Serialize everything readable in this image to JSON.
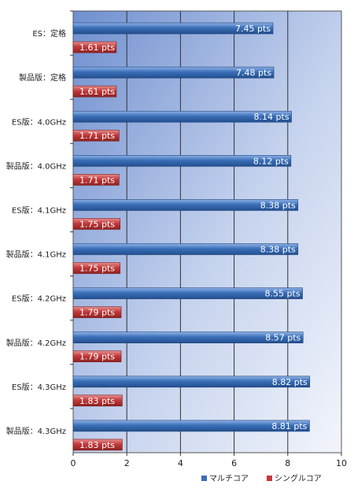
{
  "chart_data": {
    "type": "bar",
    "orientation": "horizontal",
    "categories": [
      "ES：定格",
      "製品版：定格",
      "ES版：4.0GHz",
      "製品版：4.0GHz",
      "ES版：4.1GHz",
      "製品版：4.1GHz",
      "ES版：4.2GHz",
      "製品版：4.2GHz",
      "ES版：4.3GHz",
      "製品版：4.3GHz"
    ],
    "series": [
      {
        "name": "マルチコア",
        "color": "#3a6fb8",
        "values": [
          7.45,
          7.48,
          8.14,
          8.12,
          8.38,
          8.38,
          8.55,
          8.57,
          8.82,
          8.81
        ],
        "labels": [
          "7.45 pts",
          "7.48 pts",
          "8.14 pts",
          "8.12 pts",
          "8.38 pts",
          "8.38 pts",
          "8.55 pts",
          "8.57 pts",
          "8.82 pts",
          "8.81 pts"
        ]
      },
      {
        "name": "シングルコア",
        "color": "#c43a3a",
        "values": [
          1.61,
          1.61,
          1.71,
          1.71,
          1.75,
          1.75,
          1.79,
          1.79,
          1.83,
          1.83
        ],
        "labels": [
          "1.61 pts",
          "1.61 pts",
          "1.71 pts",
          "1.71 pts",
          "1.75 pts",
          "1.75 pts",
          "1.79 pts",
          "1.79 pts",
          "1.83 pts",
          "1.83 pts"
        ]
      }
    ],
    "xlim": [
      0,
      10
    ],
    "xticks": [
      "0",
      "2",
      "4",
      "6",
      "8",
      "10"
    ],
    "grid": true,
    "legend": "bottom-right",
    "title": "",
    "xlabel": "",
    "ylabel": ""
  }
}
